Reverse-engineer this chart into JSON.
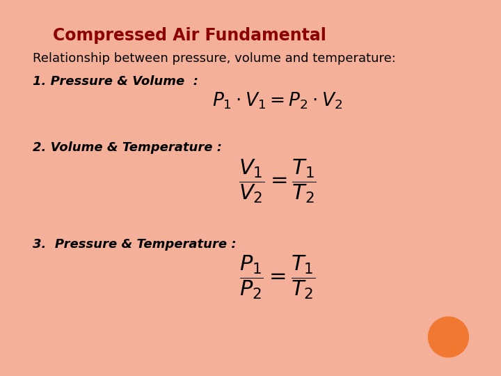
{
  "title": "Compressed Air Fundamental",
  "title_color": "#8B0000",
  "title_fontsize": 17,
  "subtitle": "Relationship between pressure, volume and temperature:",
  "subtitle_fontsize": 13,
  "label1": "1. Pressure & Volume  :",
  "formula1": "$P_1 \\cdot V_1 = P_2 \\cdot V_2$",
  "label2": "2. Volume & Temperature :",
  "formula2": "$\\dfrac{V_1}{V_2} = \\dfrac{T_1}{T_2}$",
  "label3": "3.  Pressure & Temperature :",
  "formula3": "$\\dfrac{P_1}{P_2} = \\dfrac{T_1}{T_2}$",
  "bg_color": "#FFFFFF",
  "border_color": "#F5B09A",
  "text_color": "#000000",
  "label_fontsize": 13,
  "formula1_fontsize": 19,
  "formula23_fontsize": 22,
  "orange_circle_color": "#F07830"
}
